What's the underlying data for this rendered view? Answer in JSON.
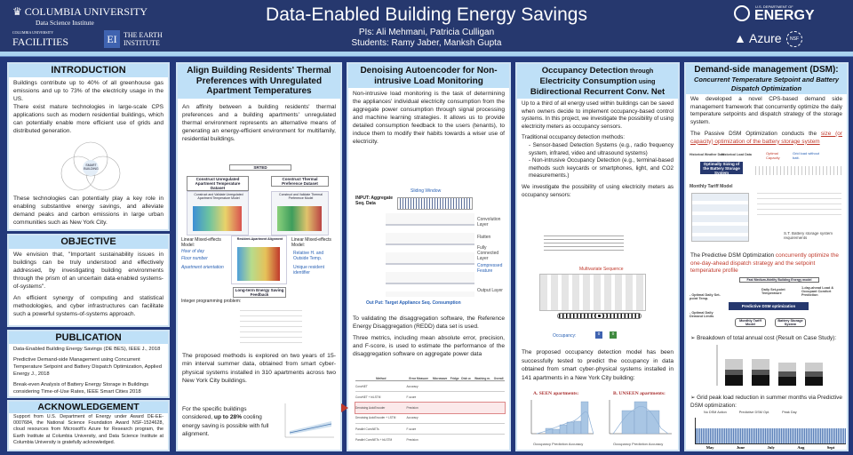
{
  "header": {
    "title": "Data-Enabled Building Energy Savings",
    "pis": "PIs: Ali Mehmani, Patricia Culligan",
    "students": "Students: Ramy Jaber, Manksh Gupta",
    "logos": {
      "columbia": "COLUMBIA UNIVERSITY",
      "dsi": "Data Science Institute",
      "facilities_small": "COLUMBIA UNIVERSITY",
      "facilities": "FACILITIES",
      "ei": "EI",
      "earth": "THE EARTH",
      "institute": "INSTITUTE",
      "doe_small": "U.S. DEPARTMENT OF",
      "doe": "ENERGY",
      "azure": "Azure",
      "nsf": "NSF"
    }
  },
  "intro": {
    "title": "INTRODUCTION",
    "p1": "Buildings contribute up to 40% of all greenhouse gas emissions and up to 73% of the electricity usage in the US.",
    "p2": "There exist mature technologies in large-scale CPS applications such as modern residential buildings, which can potentially enable more efficient use of grids and distributed generation.",
    "center": "SMART BUILDING",
    "p3": "These technologies can potentially play a key role in enabling substantive energy savings, and alleviate demand peaks and carbon emissions in large urban communities such as New York City."
  },
  "objective": {
    "title": "OBJECTIVE",
    "p1": "We envision that, \"Important sustainability issues in buildings can be truly understood and effectively addressed, by investigating building environments through the prism of an uncertain data-enabled systems-of-systems\".",
    "p2": "An efficient synergy of computing and statistical methodologies, and cyber infrastructures can facilitate such a powerful systems-of-systems approach."
  },
  "publication": {
    "title": "PUBLICATION",
    "items": [
      "Data-Enabled Building Energy Savings (DE BES), IEEE J., 2018",
      "Predictive Demand-side Management using Concurrent Temperature Setpoint and Battery Dispatch Optimization, Applied Energy J., 2018",
      "Break-even Analysis of Battery Energy Storage in Buildings considering Time-of-Use Rates, IEEE Smart Cities 2018"
    ]
  },
  "ack": {
    "title": "ACKNOWLEDGEMENT",
    "text": "Support from U.S. Department of Energy under Award DE-EE-0007684, the National Science Foundation Award NSF-1524628, cloud resources from Microsoft's Azure for Research program, the Earth Institute at Columbia University, and Data Science Institute at Columbia University is gratefully acknowledged."
  },
  "thermal": {
    "title": "Align Building Residents' Thermal Preferences with Unregulated Apartment Temperatures",
    "p1": "An affinity between a building residents' thermal preferences and a building apartments' unregulated thermal environment represents an alternative means of generating an energy-efficient environment for multifamily, residential buildings.",
    "fig": {
      "srted": "SRTED",
      "c1": "Construct Unregulated Apartment Temperature Dataset",
      "c2": "Construct Thermal Preference Dataset",
      "m1": "Construct and Validate Unregulated Apartment Temperature Model",
      "m2": "Construct and Validate Thermal Preference Model",
      "lmm1": "Linear Mixed-effects Model:",
      "hour": "Hour of day",
      "floor": "Floor number",
      "orient": "Apartment orientation",
      "align": "Resident-Apartment Alignment",
      "lmm2": "Linear Mixed-effects Model:",
      "rh": "Relative H. and Outside Temp.",
      "uid": "Unique resident identifier",
      "feedback": "Long-term Energy Saving Feedback",
      "ip": "Integer programming problem:"
    },
    "p2": "The proposed methods is explored on two years of 15-min interval summer data, obtained from smart cyber-physical systems installed in 310 apartments across two New York City buildings.",
    "p3a": "For the specific buildings considered, ",
    "p3b": "up to 28%",
    "p3c": " cooling energy saving is possible with full alignment."
  },
  "nilm": {
    "title": "Denoising Autoencoder for Non-intrusive Load Monitoring",
    "p1": "Non-intrusive load monitoring is the task of determining the appliances' individual electricity consumption from the aggregate power consumption through signal processing and machine learning strategies. It allows us to provide detailed consumption feedback to the users (tenants), to induce them to modify their habits towards a wiser use of electricity.",
    "fig": {
      "window": "Sliding Window",
      "input": "INPUT: Aggregate Seq. Data",
      "conv": "Convolution Layer",
      "flatten": "Flatten",
      "fc": "Fully Connected Layer",
      "compressed": "Compressed Feature",
      "output": "Output Layer",
      "out": "Out Put: Target Appliance Seq. Consumption"
    },
    "p2": "To validating the disaggregation software, the Reference Energy Disaggregation (REDD) data set is used.",
    "p3": "Three metrics, including mean absolute error, precision, and F-score, is used to estimate the performance of the disaggregation software on aggregate power data",
    "table": {
      "headers": [
        "Method",
        "Error Measure",
        "Microwave",
        "Fridge",
        "Dish w.",
        "Washing m.",
        "Overall"
      ],
      "methods": [
        "ConvNET",
        "ConvNET + biLSTM",
        "Denoising AutoEncoder",
        "Denoising AutoEncoder + LSTM",
        "Parallel ConvNETs",
        "Parallel ConvNETs + biLSTM"
      ],
      "measures": [
        "Accuracy",
        "F-score",
        "Precision"
      ]
    }
  },
  "occupancy": {
    "title1": "Occupancy Detection",
    "title2": " through",
    "title3": "Electricity Consumption",
    "title4": " using",
    "title5": "Bidirectional Recurrent Conv. Net",
    "p1": "Up to a third of all energy used within buildings can be saved when owners decide to implement occupancy-based control systems. In this project, we investigate the possibility of using electricity meters as occupancy sensors.",
    "p2": "Traditional occupancy detection methods:",
    "b1": "- Sensor-based Detection Systems (e.g., radio frequency system, infrared, video and ultrasound systems)",
    "b2": "- Non-intrusive Occupancy Detection (e.g., terminal-based methods such keycards or smartphones, light, and CO2 measurements.)",
    "p3": "We investigate the possibility of using electricity meters as occupancy sensors:",
    "fig": {
      "mseq": "Multivariate Sequence",
      "occ": "Occupancy:",
      "o1": "0",
      "o2": "0"
    },
    "p4": "The proposed occupancy detection model has been successfully tested to predict the occupancy in data obtained from smart cyber-physical systems installed in 141 apartments in a New York City building:",
    "hA": "A. SEEN apartments:",
    "hB": "B. UNSEEN apartments:",
    "xlabel": "Occupancy Prediction Accuracy",
    "ylabel": "Frequency"
  },
  "dsm": {
    "title": "Demand-side management (DSM):",
    "subtitle": "Concurrent Temperature Setpoint and Battery Dispatch Optimization",
    "p1": "We developed a novel CPS-based demand side management framework that concurrently optimize the daily temperature setpoints and dispatch strategy of the storage system.",
    "p2a": "The Passive DSM Optimization conducts the ",
    "p2b": "size (or capacity) optimization of the battery storage system",
    "fig1": {
      "hist1": "Historical Weather Data",
      "hist2": "Historical Load Data",
      "opt": "Optimally Sizing of the Battery Storage System",
      "cap": "Optimal Capacity",
      "grid": "Grid load without batt.",
      "tariff": "Monthly Tariff Model",
      "st": "S.T. Battery storage system requirements"
    },
    "p3a": "The Predictive DSM Optimization ",
    "p3b": "concurrently optimize the one-day-ahead dispatch strategy and the setpoint temperature profile",
    "fig2": {
      "model": "Fast Medium-fidelity Building Energy model",
      "pdo": "Predictive DSM optimization",
      "tariff": "Monthly Tariff Model",
      "battery": "Battery Storage System",
      "setpoint": "- Optimal Daily Set-point Temp.",
      "limits": "- Optimal Daily Demand Limits",
      "forecast": "1-day-ahead Load & Occupant Comfort Prediction",
      "daily": "Daily Set-point Temperature"
    },
    "b1": "Breakdown of total annual cost (Result on Case Study):",
    "b2": "Grid peak load reduction in summer months via Predictive DSM optimization:",
    "months": [
      "May",
      "June",
      "July",
      "Aug",
      "Sept"
    ],
    "legend": [
      "No DSM Action",
      "Predictive DSM Opt.",
      "Peak Day"
    ],
    "colors": {
      "accent": "#c0392b",
      "navy": "#23387a",
      "head": "#bfe0f7"
    }
  }
}
